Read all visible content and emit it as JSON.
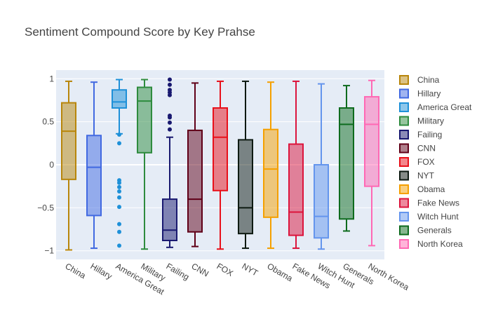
{
  "chart_data": {
    "type": "box",
    "title": "Sentiment Compound Score by Key Prahse",
    "xlabel": "",
    "ylabel": "",
    "ylim": [
      -1.1,
      1.1
    ],
    "yticks": [
      1,
      0.5,
      0,
      -0.5,
      -1
    ],
    "ytick_labels": [
      "1",
      "0.5",
      "0",
      "−0.5",
      "−1"
    ],
    "grid": true,
    "legend_position": "right",
    "series": [
      {
        "name": "China",
        "color": "#B8860B",
        "min": -0.99,
        "q1": -0.17,
        "median": 0.39,
        "q3": 0.72,
        "max": 0.97,
        "outliers": []
      },
      {
        "name": "Hillary",
        "color": "#4169E1",
        "min": -0.97,
        "q1": -0.59,
        "median": -0.03,
        "q3": 0.34,
        "max": 0.96,
        "outliers": []
      },
      {
        "name": "America Great",
        "color": "#1E90D8",
        "min": 0.36,
        "q1": 0.66,
        "median": 0.73,
        "q3": 0.87,
        "max": 0.99,
        "outliers": [
          0.35,
          0.25,
          -0.18,
          -0.21,
          -0.26,
          -0.31,
          -0.38,
          -0.49,
          -0.69,
          -0.78,
          -0.94
        ]
      },
      {
        "name": "Military",
        "color": "#2E8B3E",
        "min": -0.98,
        "q1": 0.14,
        "median": 0.74,
        "q3": 0.9,
        "max": 0.99,
        "outliers": []
      },
      {
        "name": "Failing",
        "color": "#191970",
        "min": -0.96,
        "q1": -0.88,
        "median": -0.76,
        "q3": -0.4,
        "max": 0.32,
        "outliers": [
          0.41,
          0.49,
          0.55,
          0.57,
          0.81,
          0.84,
          0.87,
          0.93,
          0.99
        ]
      },
      {
        "name": "CNN",
        "color": "#600018",
        "min": -0.95,
        "q1": -0.78,
        "median": -0.4,
        "q3": 0.4,
        "max": 0.95,
        "outliers": []
      },
      {
        "name": "FOX",
        "color": "#E8101A",
        "min": -0.98,
        "q1": -0.3,
        "median": 0.32,
        "q3": 0.66,
        "max": 0.97,
        "outliers": []
      },
      {
        "name": "NYT",
        "color": "#0E1A12",
        "min": -0.97,
        "q1": -0.8,
        "median": -0.5,
        "q3": 0.29,
        "max": 0.97,
        "outliers": []
      },
      {
        "name": "Obama",
        "color": "#F5A000",
        "min": -0.97,
        "q1": -0.61,
        "median": -0.05,
        "q3": 0.41,
        "max": 0.96,
        "outliers": []
      },
      {
        "name": "Fake News",
        "color": "#DC143C",
        "min": -0.97,
        "q1": -0.82,
        "median": -0.55,
        "q3": 0.24,
        "max": 0.97,
        "outliers": []
      },
      {
        "name": "Witch Hunt",
        "color": "#6495ED",
        "min": -0.98,
        "q1": -0.85,
        "median": -0.6,
        "q3": 0.0,
        "max": 0.94,
        "outliers": []
      },
      {
        "name": "Generals",
        "color": "#0E6B1E",
        "min": -0.77,
        "q1": -0.63,
        "median": 0.47,
        "q3": 0.66,
        "max": 0.92,
        "outliers": []
      },
      {
        "name": "North Korea",
        "color": "#FF69B4",
        "min": -0.94,
        "q1": -0.25,
        "median": 0.47,
        "q3": 0.79,
        "max": 0.98,
        "outliers": []
      }
    ]
  }
}
